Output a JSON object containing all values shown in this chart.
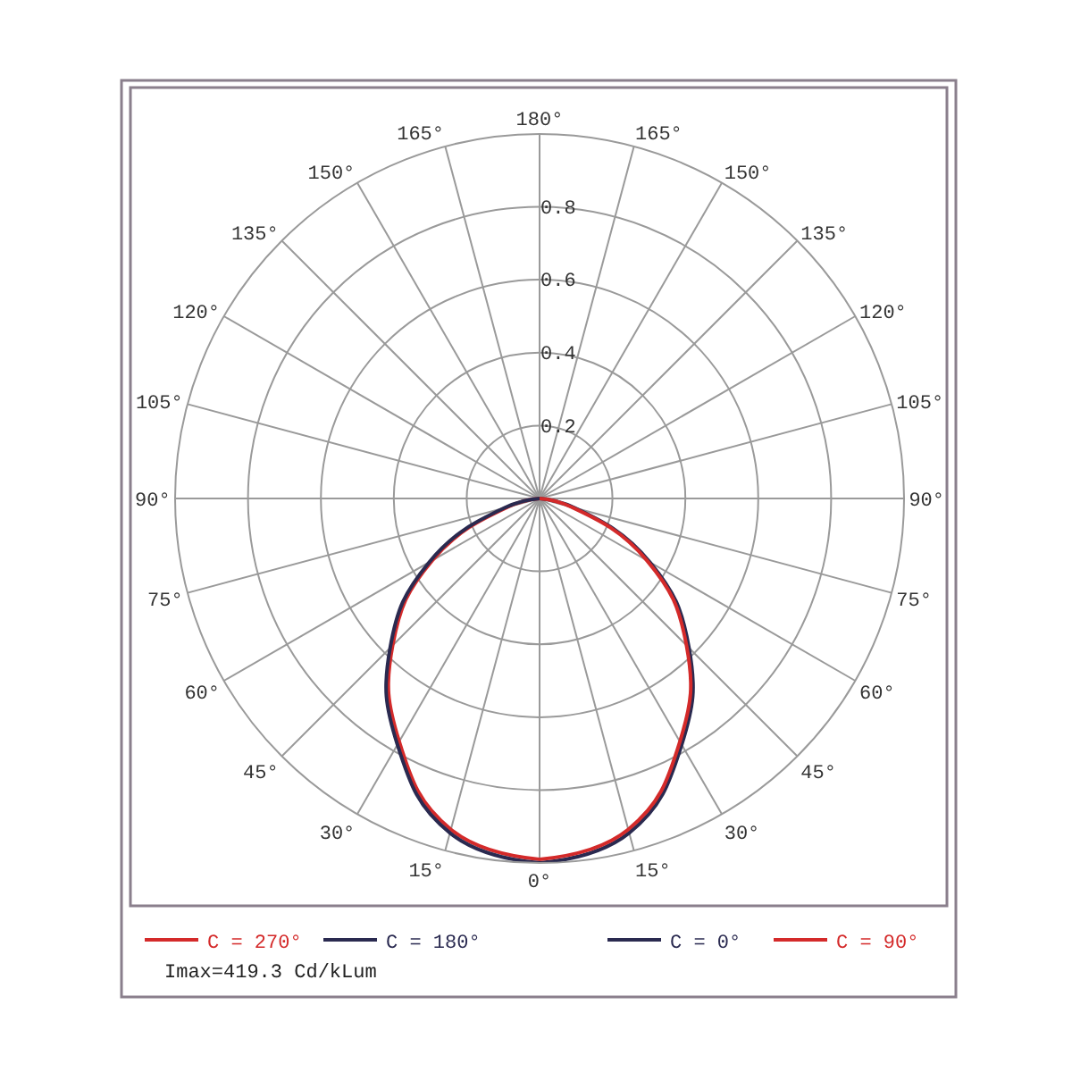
{
  "chart_data": {
    "type": "radar",
    "categories": [
      "180°",
      "165°",
      "150°",
      "135°",
      "120°",
      "105°",
      "90°",
      "75°",
      "60°",
      "45°",
      "30°",
      "15°",
      "0°",
      "15°",
      "30°",
      "45°",
      "60°",
      "75°",
      "90°",
      "105°",
      "120°",
      "135°",
      "150°",
      "165°"
    ],
    "ylim": [
      0,
      1
    ],
    "yticks": [
      0.2,
      0.4,
      0.6,
      0.8
    ],
    "grid": true,
    "legend": "bottom",
    "series": [
      {
        "name": "C = 270°",
        "color": "#d42a2a",
        "values": [
          null,
          null,
          null,
          null,
          null,
          null,
          null,
          null,
          null,
          null,
          null,
          null,
          0.99,
          0.94,
          0.77,
          0.57,
          0.34,
          0.09,
          0,
          null,
          null,
          null,
          null,
          null
        ]
      },
      {
        "name": "C = 180°",
        "color": "#2a2a50",
        "values": [
          null,
          null,
          null,
          null,
          null,
          null,
          null,
          null,
          null,
          null,
          null,
          null,
          1.0,
          0.95,
          0.78,
          0.58,
          0.35,
          0.1,
          0,
          null,
          null,
          null,
          null,
          null
        ]
      },
      {
        "name": "C = 0°",
        "color": "#2a2a50",
        "values": [
          null,
          null,
          null,
          null,
          null,
          null,
          0,
          0.1,
          0.35,
          0.58,
          0.78,
          0.95,
          1.0,
          null,
          null,
          null,
          null,
          null,
          null,
          null,
          null,
          null,
          null,
          null
        ]
      },
      {
        "name": "C = 90°",
        "color": "#d42a2a",
        "values": [
          null,
          null,
          null,
          null,
          null,
          null,
          0,
          0.09,
          0.34,
          0.57,
          0.77,
          0.94,
          0.99,
          null,
          null,
          null,
          null,
          null,
          null,
          null,
          null,
          null,
          null,
          null
        ]
      }
    ],
    "annotations": [
      "Imax=419.3 Cd/kLum"
    ]
  }
}
